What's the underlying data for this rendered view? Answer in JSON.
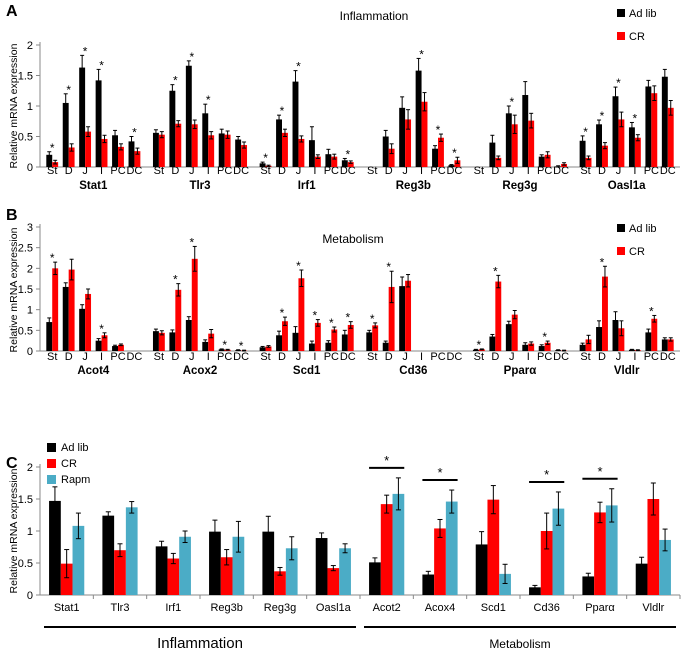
{
  "chart_data": [
    {
      "type": "bar",
      "panel_label": "A",
      "title": "Inflammation",
      "ylabel": "Relative mRNA expression",
      "ylim": [
        0,
        2
      ],
      "yticks": [
        0,
        0.5,
        1,
        1.5,
        2
      ],
      "ytick_labels": [
        "0",
        "0.5",
        "1",
        "1.5",
        "2"
      ],
      "legend": [
        "Ad lib",
        "CR"
      ],
      "sites": [
        "St",
        "D",
        "J",
        "I",
        "PC",
        "DC"
      ],
      "genes": [
        {
          "name": "Stat1",
          "site_labels": [
            "St",
            "D",
            "J",
            "I",
            "PC",
            "DC"
          ],
          "series": [
            {
              "name": "Ad lib",
              "values": [
                0.2,
                1.05,
                1.63,
                1.42,
                0.52,
                0.42
              ],
              "errors": [
                0.05,
                0.15,
                0.2,
                0.18,
                0.08,
                0.08
              ]
            },
            {
              "name": "CR",
              "values": [
                0.08,
                0.32,
                0.58,
                0.46,
                0.33,
                0.26
              ],
              "errors": [
                0.03,
                0.06,
                0.08,
                0.06,
                0.05,
                0.05
              ]
            }
          ],
          "stars": [
            0,
            1,
            2,
            3,
            5
          ]
        },
        {
          "name": "Tlr3",
          "site_labels": [
            "St",
            "D",
            "J",
            "I",
            "PC",
            "DC"
          ],
          "series": [
            {
              "name": "Ad lib",
              "values": [
                0.56,
                1.25,
                1.66,
                0.88,
                0.55,
                0.45
              ],
              "errors": [
                0.05,
                0.1,
                0.08,
                0.15,
                0.07,
                0.05
              ]
            },
            {
              "name": "CR",
              "values": [
                0.53,
                0.71,
                0.7,
                0.52,
                0.53,
                0.36
              ],
              "errors": [
                0.05,
                0.05,
                0.07,
                0.06,
                0.06,
                0.05
              ]
            }
          ],
          "stars": [
            1,
            2,
            3
          ]
        },
        {
          "name": "Irf1",
          "site_labels": [
            "St",
            "D",
            "J",
            "I",
            "PC",
            "DC"
          ],
          "series": [
            {
              "name": "Ad lib",
              "values": [
                0.06,
                0.78,
                1.4,
                0.44,
                0.21,
                0.11
              ],
              "errors": [
                0.02,
                0.07,
                0.18,
                0.22,
                0.08,
                0.03
              ]
            },
            {
              "name": "CR",
              "values": [
                0.02,
                0.56,
                0.46,
                0.17,
                0.17,
                0.08
              ],
              "errors": [
                0.01,
                0.06,
                0.05,
                0.03,
                0.04,
                0.02
              ]
            }
          ],
          "stars": [
            0,
            1,
            2,
            5
          ]
        },
        {
          "name": "Reg3b",
          "site_labels": [
            "St",
            "D",
            "J",
            "I",
            "PC",
            "DC"
          ],
          "series": [
            {
              "name": "Ad lib",
              "values": [
                0.0,
                0.5,
                0.97,
                1.58,
                0.3,
                0.03
              ],
              "errors": [
                0.0,
                0.1,
                0.18,
                0.2,
                0.05,
                0.01
              ]
            },
            {
              "name": "CR",
              "values": [
                0.0,
                0.3,
                0.78,
                1.07,
                0.48,
                0.11
              ],
              "errors": [
                0.0,
                0.08,
                0.16,
                0.15,
                0.06,
                0.05
              ]
            }
          ],
          "stars": [
            3,
            4,
            5
          ]
        },
        {
          "name": "Reg3g",
          "site_labels": [
            "St",
            "D",
            "J",
            "I",
            "PC",
            "DC"
          ],
          "series": [
            {
              "name": "Ad lib",
              "values": [
                0.0,
                0.4,
                0.88,
                1.18,
                0.17,
                0.01
              ],
              "errors": [
                0.0,
                0.12,
                0.12,
                0.22,
                0.03,
                0.01
              ]
            },
            {
              "name": "CR",
              "values": [
                0.0,
                0.15,
                0.7,
                0.76,
                0.2,
                0.05
              ],
              "errors": [
                0.0,
                0.03,
                0.15,
                0.12,
                0.05,
                0.02
              ]
            }
          ],
          "stars": [
            2
          ]
        },
        {
          "name": "Oasl1a",
          "site_labels": [
            "St",
            "D",
            "J",
            "I",
            "PC",
            "DC"
          ],
          "series": [
            {
              "name": "Ad lib",
              "values": [
                0.43,
                0.7,
                1.16,
                0.65,
                1.32,
                1.48
              ],
              "errors": [
                0.08,
                0.07,
                0.15,
                0.08,
                0.1,
                0.12
              ]
            },
            {
              "name": "CR",
              "values": [
                0.15,
                0.35,
                0.78,
                0.48,
                1.21,
                0.97
              ],
              "errors": [
                0.03,
                0.05,
                0.12,
                0.05,
                0.12,
                0.12
              ]
            }
          ],
          "stars": [
            0,
            1,
            2,
            3
          ]
        }
      ]
    },
    {
      "type": "bar",
      "panel_label": "B",
      "title": "Metabolism",
      "ylabel": "Relative mRNA expression",
      "ylim": [
        0,
        3
      ],
      "yticks": [
        0,
        0.5,
        1,
        1.5,
        2,
        2.5,
        3
      ],
      "ytick_labels": [
        "0",
        "0.5",
        "1",
        "1.5",
        "2",
        "2.5",
        "3"
      ],
      "legend": [
        "Ad lib",
        "CR"
      ],
      "sites": [
        "St",
        "D",
        "J",
        "I",
        "PC",
        "DC"
      ],
      "genes": [
        {
          "name": "Acot4",
          "site_labels": [
            "St",
            "D",
            "J",
            "I",
            "PC",
            "DC"
          ],
          "series": [
            {
              "name": "Ad lib",
              "values": [
                0.7,
                1.55,
                1.02,
                0.25,
                0.12,
                0.0
              ],
              "errors": [
                0.1,
                0.1,
                0.1,
                0.05,
                0.02,
                0.0
              ]
            },
            {
              "name": "CR",
              "values": [
                2.0,
                1.97,
                1.38,
                0.38,
                0.15,
                0.0
              ],
              "errors": [
                0.15,
                0.25,
                0.12,
                0.06,
                0.02,
                0.0
              ]
            }
          ],
          "stars": [
            0,
            3
          ]
        },
        {
          "name": "Acox2",
          "site_labels": [
            "St",
            "D",
            "J",
            "I",
            "PC",
            "DC"
          ],
          "series": [
            {
              "name": "Ad lib",
              "values": [
                0.48,
                0.45,
                0.75,
                0.22,
                0.04,
                0.02
              ],
              "errors": [
                0.05,
                0.06,
                0.08,
                0.05,
                0.01,
                0.01
              ]
            },
            {
              "name": "CR",
              "values": [
                0.44,
                1.48,
                2.23,
                0.42,
                0.03,
                0.01
              ],
              "errors": [
                0.05,
                0.15,
                0.3,
                0.1,
                0.01,
                0.01
              ]
            }
          ],
          "stars": [
            1,
            2,
            4,
            5
          ]
        },
        {
          "name": "Scd1",
          "site_labels": [
            "St",
            "D",
            "J",
            "I",
            "PC",
            "DC"
          ],
          "series": [
            {
              "name": "Ad lib",
              "values": [
                0.09,
                0.38,
                0.44,
                0.18,
                0.2,
                0.4
              ],
              "errors": [
                0.02,
                0.1,
                0.15,
                0.06,
                0.05,
                0.1
              ]
            },
            {
              "name": "CR",
              "values": [
                0.11,
                0.72,
                1.76,
                0.68,
                0.52,
                0.63
              ],
              "errors": [
                0.02,
                0.1,
                0.2,
                0.08,
                0.06,
                0.08
              ]
            }
          ],
          "stars": [
            1,
            2,
            3,
            4,
            5
          ]
        },
        {
          "name": "Cd36",
          "site_labels": [
            "St",
            "D",
            "J",
            "I",
            "PC",
            "DC"
          ],
          "series": [
            {
              "name": "Ad lib",
              "values": [
                0.45,
                0.2,
                1.57,
                0.0,
                0.0,
                0.0
              ],
              "errors": [
                0.05,
                0.04,
                0.22,
                0.0,
                0.0,
                0.0
              ]
            },
            {
              "name": "CR",
              "values": [
                0.62,
                1.55,
                1.7,
                0.0,
                0.0,
                0.0
              ],
              "errors": [
                0.06,
                0.38,
                0.15,
                0.0,
                0.0,
                0.0
              ]
            }
          ],
          "stars": [
            0,
            1
          ]
        },
        {
          "name": "Pparα",
          "site_labels": [
            "St",
            "D",
            "J",
            "I",
            "PC",
            "DC"
          ],
          "series": [
            {
              "name": "Ad lib",
              "values": [
                0.03,
                0.35,
                0.65,
                0.15,
                0.12,
                0.02
              ],
              "errors": [
                0.01,
                0.05,
                0.07,
                0.05,
                0.03,
                0.01
              ]
            },
            {
              "name": "CR",
              "values": [
                0.04,
                1.68,
                0.88,
                0.18,
                0.2,
                0.01
              ],
              "errors": [
                0.01,
                0.15,
                0.1,
                0.04,
                0.04,
                0.01
              ]
            }
          ],
          "stars": [
            0,
            1,
            4
          ]
        },
        {
          "name": "Vldlr",
          "site_labels": [
            "St",
            "D",
            "J",
            "I",
            "PC",
            "DC"
          ],
          "series": [
            {
              "name": "Ad lib",
              "values": [
                0.15,
                0.58,
                0.75,
                0.03,
                0.45,
                0.28
              ],
              "errors": [
                0.04,
                0.15,
                0.2,
                0.01,
                0.08,
                0.04
              ]
            },
            {
              "name": "CR",
              "values": [
                0.28,
                1.8,
                0.55,
                0.02,
                0.78,
                0.28
              ],
              "errors": [
                0.1,
                0.25,
                0.18,
                0.01,
                0.08,
                0.04
              ]
            }
          ],
          "stars": [
            1,
            4
          ]
        }
      ]
    },
    {
      "type": "bar",
      "panel_label": "C",
      "ylabel": "Relative mRNA expression",
      "ylim": [
        0,
        2
      ],
      "yticks": [
        0,
        0.5,
        1,
        1.5,
        2
      ],
      "ytick_labels": [
        "0",
        "0.5",
        "1",
        "1.5",
        "2"
      ],
      "categories": [
        "Stat1",
        "Tlr3",
        "Irf1",
        "Reg3b",
        "Reg3g",
        "Oasl1a",
        "Acot2",
        "Acox4",
        "Scd1",
        "Cd36",
        "Pparα",
        "Vldlr"
      ],
      "series": [
        {
          "name": "Ad lib",
          "values": [
            1.47,
            1.24,
            0.76,
            0.99,
            0.99,
            0.89,
            0.51,
            0.32,
            0.79,
            0.12,
            0.29,
            0.49
          ],
          "errors": [
            0.22,
            0.06,
            0.08,
            0.18,
            0.24,
            0.08,
            0.07,
            0.05,
            0.2,
            0.03,
            0.05,
            0.1
          ]
        },
        {
          "name": "CR",
          "values": [
            0.49,
            0.7,
            0.57,
            0.59,
            0.37,
            0.42,
            1.42,
            1.04,
            1.49,
            1.0,
            1.29,
            1.5
          ],
          "errors": [
            0.22,
            0.1,
            0.08,
            0.12,
            0.06,
            0.04,
            0.14,
            0.14,
            0.22,
            0.28,
            0.16,
            0.25
          ]
        },
        {
          "name": "Rapm",
          "values": [
            1.08,
            1.37,
            0.91,
            0.91,
            0.73,
            0.73,
            1.58,
            1.46,
            0.33,
            1.35,
            1.4,
            0.86
          ]
        }
      ],
      "rapm_errors": [
        0.2,
        0.09,
        0.09,
        0.24,
        0.18,
        0.07,
        0.25,
        0.18,
        0.15,
        0.26,
        0.26,
        0.17
      ],
      "significance": [
        {
          "category": "Acot2",
          "label": "*"
        },
        {
          "category": "Acox4",
          "label": "*"
        },
        {
          "category": "Cd36",
          "label": "*"
        },
        {
          "category": "Pparα",
          "label": "*"
        }
      ],
      "groups": [
        {
          "label": "Inflammation",
          "from": "Stat1",
          "to": "Oasl1a"
        },
        {
          "label": "Metabolism",
          "from": "Acot2",
          "to": "Vldlr"
        }
      ]
    }
  ],
  "colors": {
    "adlib": "#000000",
    "cr": "#ff0000",
    "rapm": "#4bacc6",
    "axis": "#888888"
  }
}
